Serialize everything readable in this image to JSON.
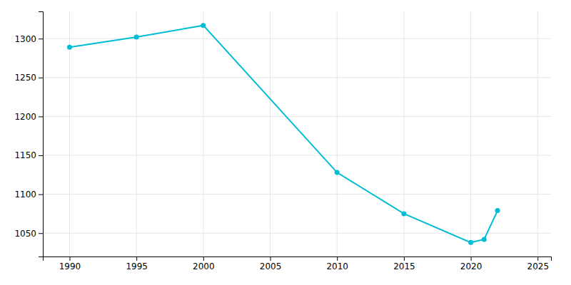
{
  "chart_data": {
    "type": "line",
    "x": [
      1990,
      1995,
      2000,
      2010,
      2015,
      2020,
      2021,
      2022
    ],
    "values": [
      1289,
      1302,
      1317,
      1128,
      1075,
      1038,
      1042,
      1079
    ],
    "color": "#00bcd4",
    "marker": "circle",
    "xlim": [
      1988,
      2026
    ],
    "xticks": [
      1990,
      1995,
      2000,
      2005,
      2010,
      2015,
      2020,
      2025
    ],
    "ylim": [
      1020,
      1335
    ],
    "yticks": [
      1050,
      1100,
      1150,
      1200,
      1250,
      1300
    ],
    "grid": true
  }
}
